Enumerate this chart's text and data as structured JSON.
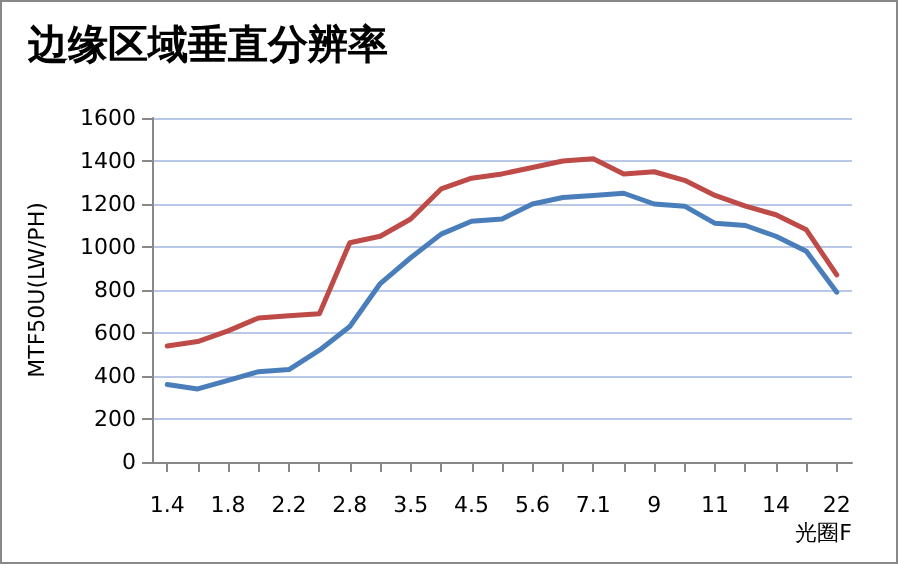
{
  "chart_data": {
    "type": "line",
    "title": "边缘区域垂直分辨率",
    "xlabel": "光圈F",
    "ylabel": "MTF50U(LW/PH)",
    "categories": [
      "1.4",
      null,
      "1.8",
      null,
      "2.2",
      null,
      "2.8",
      null,
      "3.5",
      null,
      "4.5",
      null,
      "5.6",
      null,
      "7.1",
      null,
      "9",
      null,
      "11",
      null,
      "14",
      null,
      "22"
    ],
    "series": [
      {
        "color": "#4a7ebb",
        "values": [
          360,
          340,
          380,
          420,
          430,
          520,
          630,
          830,
          950,
          1060,
          1120,
          1130,
          1200,
          1230,
          1240,
          1250,
          1200,
          1190,
          1110,
          1100,
          1050,
          980,
          790
        ]
      },
      {
        "color": "#be4b48",
        "values": [
          540,
          560,
          610,
          670,
          680,
          690,
          1020,
          1050,
          1130,
          1270,
          1320,
          1340,
          1370,
          1400,
          1410,
          1340,
          1350,
          1310,
          1240,
          1190,
          1150,
          1080,
          870
        ]
      }
    ],
    "ylim": [
      0,
      1600
    ],
    "yticks": [
      0,
      200,
      400,
      600,
      800,
      1000,
      1200,
      1400,
      1600
    ],
    "grid": "y",
    "marker": "none",
    "line_style": "solid"
  }
}
